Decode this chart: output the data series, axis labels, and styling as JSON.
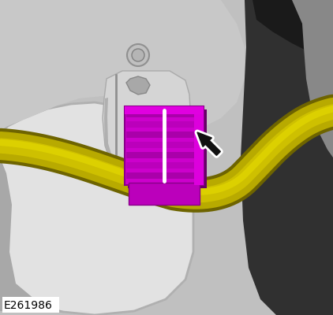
{
  "figsize": [
    4.22,
    4.0
  ],
  "dpi": 100,
  "bg_color": "#c8c8c8",
  "label_text": "E261986",
  "label_fontsize": 10,
  "label_color": "#000000",
  "label_bg": "#ffffff",
  "yellow_main": "#c8be00",
  "yellow_light": "#ddd200",
  "yellow_dark": "#8c8400",
  "magenta_main": "#d400d4",
  "magenta_dark": "#9900aa",
  "magenta_light": "#e800e8",
  "white_color": "#ffffff",
  "arrow_black": "#111111",
  "gray_light": "#d8d8d8",
  "gray_mid": "#b0b0b0",
  "gray_dark": "#787878",
  "body_dark": "#404040",
  "body_darker": "#252525"
}
